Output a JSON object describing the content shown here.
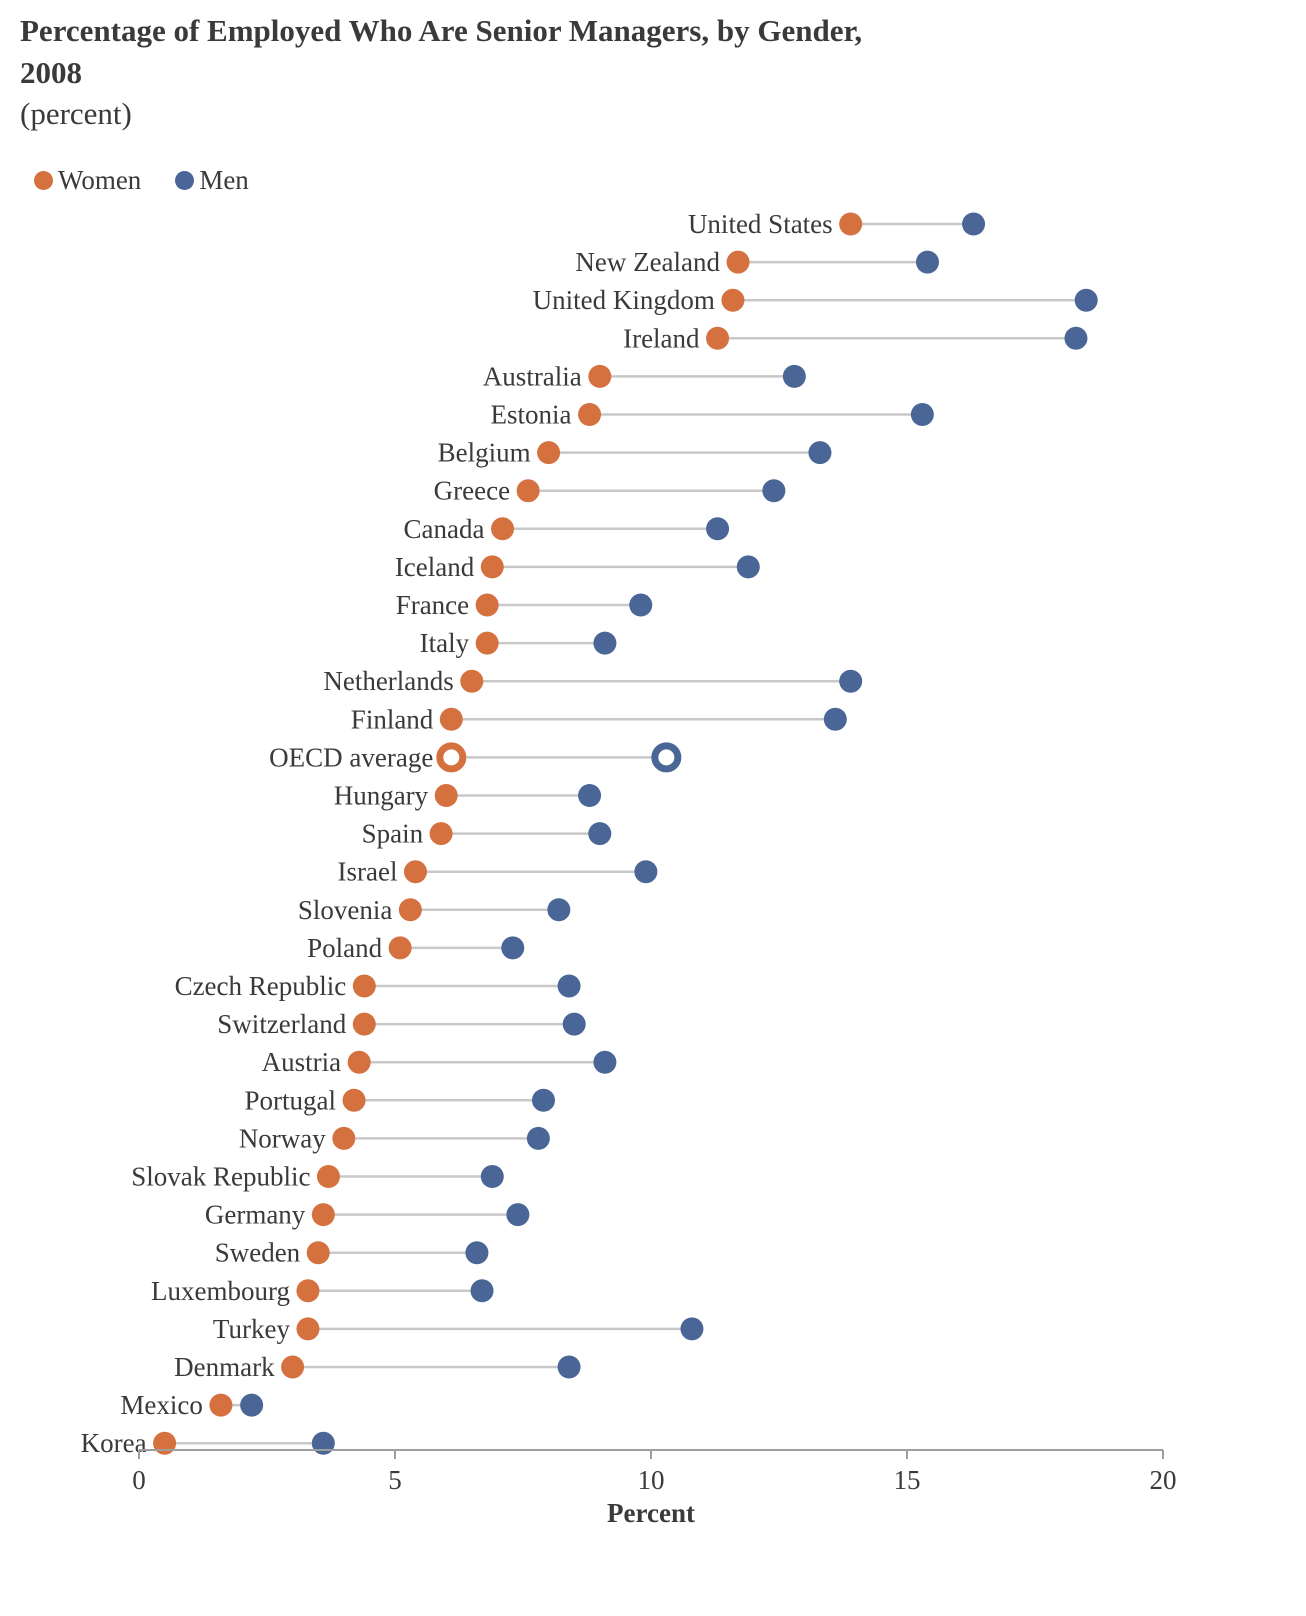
{
  "title": "Percentage of Employed Who Are Senior Managers,  by Gender, 2008",
  "subtitle": "(percent)",
  "colors": {
    "women": "#d4713f",
    "men": "#4a6696",
    "connector": "#c8c8c8",
    "axis": "#9e9e9e"
  },
  "legend": [
    {
      "label": "Women",
      "color": "#d4713f"
    },
    {
      "label": "Men",
      "color": "#4a6696"
    }
  ],
  "chart_data": {
    "type": "dumbbell",
    "title": "Percentage of Employed Who Are Senior Managers,  by Gender, 2008",
    "subtitle": "(percent)",
    "xlabel": "Percent",
    "xlim": [
      0,
      20
    ],
    "xticks": [
      0,
      5,
      10,
      15,
      20
    ],
    "legend_position": "top-left",
    "highlight": "OECD average",
    "categories": [
      "United States",
      "New Zealand",
      "United Kingdom",
      "Ireland",
      "Australia",
      "Estonia",
      "Belgium",
      "Greece",
      "Canada",
      "Iceland",
      "France",
      "Italy",
      "Netherlands",
      "Finland",
      "OECD average",
      "Hungary",
      "Spain",
      "Israel",
      "Slovenia",
      "Poland",
      "Czech Republic",
      "Switzerland",
      "Austria",
      "Portugal",
      "Norway",
      "Slovak Republic",
      "Germany",
      "Sweden",
      "Luxembourg",
      "Turkey",
      "Denmark",
      "Mexico",
      "Korea"
    ],
    "series": [
      {
        "name": "Women",
        "values": [
          13.9,
          11.7,
          11.6,
          11.3,
          9.0,
          8.8,
          8.0,
          7.6,
          7.1,
          6.9,
          6.8,
          6.8,
          6.5,
          6.1,
          6.1,
          6.0,
          5.9,
          5.4,
          5.3,
          5.1,
          4.4,
          4.4,
          4.3,
          4.2,
          4.0,
          3.7,
          3.6,
          3.5,
          3.3,
          3.3,
          3.0,
          1.6,
          0.5
        ]
      },
      {
        "name": "Men",
        "values": [
          16.3,
          15.4,
          18.5,
          18.3,
          12.8,
          15.3,
          13.3,
          12.4,
          11.3,
          11.9,
          9.8,
          9.1,
          13.9,
          13.6,
          10.3,
          8.8,
          9.0,
          9.9,
          8.2,
          7.3,
          8.4,
          8.5,
          9.1,
          7.9,
          7.8,
          6.9,
          7.4,
          6.6,
          6.7,
          10.8,
          8.4,
          2.2,
          3.6
        ]
      }
    ]
  }
}
